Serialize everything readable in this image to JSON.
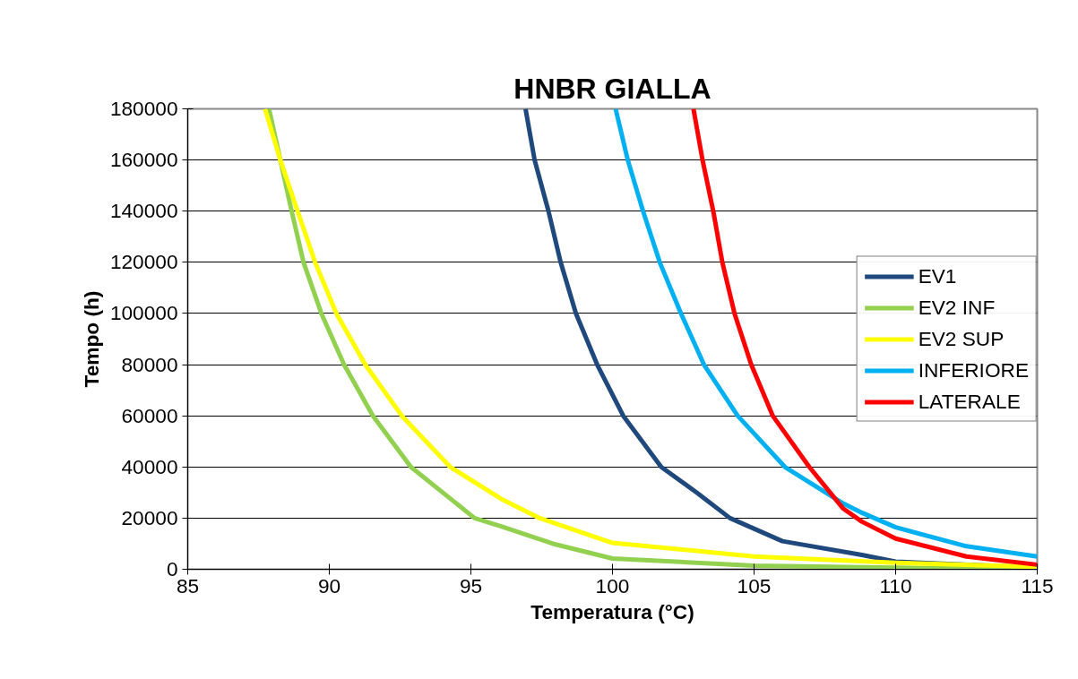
{
  "chart_data": {
    "type": "line",
    "title": "HNBR GIALLA",
    "xlabel": "Temperatura (°C)",
    "ylabel": "Tempo (h)",
    "xlim": [
      85,
      115
    ],
    "xticks": [
      85,
      90,
      95,
      100,
      105,
      110,
      115
    ],
    "ylim": [
      0,
      180000
    ],
    "yticks": [
      0,
      20000,
      40000,
      60000,
      80000,
      100000,
      120000,
      140000,
      160000,
      180000
    ],
    "grid": "y",
    "legend": "right",
    "line_style": "solid",
    "marker": "none",
    "series": [
      {
        "name": "EV1",
        "color": "#1f497d",
        "x": [
          96.93,
          97.25,
          97.74,
          98.17,
          98.71,
          99.46,
          100.38,
          101.72,
          103,
          104.15,
          106,
          108.81,
          110,
          115
        ],
        "values": [
          180000,
          160000,
          140000,
          120000,
          100000,
          80000,
          60000,
          40000,
          29800,
          20000,
          11000,
          5600,
          3000,
          600
        ]
      },
      {
        "name": "EV2 INF",
        "color": "#92d050",
        "x": [
          87.87,
          88.27,
          88.67,
          89.09,
          89.72,
          90.52,
          91.54,
          92.88,
          95.13,
          96.07,
          97.99,
          100,
          105,
          110,
          115
        ],
        "values": [
          180000,
          160000,
          140000,
          120000,
          100000,
          80000,
          60000,
          40000,
          20000,
          16800,
          9700,
          4200,
          1400,
          600,
          300
        ]
      },
      {
        "name": "EV2 SUP",
        "color": "#ffff00",
        "x": [
          87.73,
          88.27,
          88.88,
          89.5,
          90.25,
          91.27,
          92.56,
          94.27,
          96.07,
          97.43,
          100,
          105,
          110,
          115
        ],
        "values": [
          180000,
          160000,
          140000,
          120000,
          100000,
          80000,
          60000,
          40000,
          27500,
          20000,
          10300,
          5000,
          2500,
          1000
        ]
      },
      {
        "name": "INFERIORE",
        "color": "#00b0f0",
        "x": [
          100.11,
          100.54,
          101.08,
          101.67,
          102.42,
          103.23,
          104.42,
          106.09,
          108.15,
          108.81,
          110,
          112.5,
          115
        ],
        "values": [
          180000,
          160000,
          140000,
          120000,
          100000,
          80000,
          60000,
          40000,
          25700,
          22100,
          16400,
          9000,
          5000
        ]
      },
      {
        "name": "LATERALE",
        "color": "#ff0000",
        "x": [
          102.86,
          103.18,
          103.56,
          103.88,
          104.31,
          104.9,
          105.66,
          106.95,
          108.15,
          108.81,
          110,
          112.5,
          115
        ],
        "values": [
          180000,
          160000,
          140000,
          120000,
          100000,
          80000,
          60000,
          40000,
          23700,
          18600,
          12000,
          5000,
          1800
        ]
      }
    ]
  }
}
